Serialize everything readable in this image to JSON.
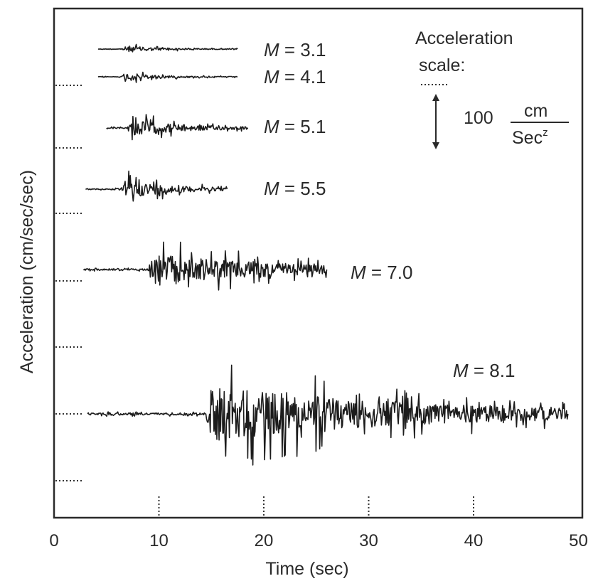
{
  "chart_data": {
    "type": "line",
    "xlabel": "Time (sec)",
    "ylabel": "Acceleration (cm/sec/sec)",
    "xlim": [
      0,
      50
    ],
    "x_ticks": [
      0,
      10,
      20,
      30,
      40,
      50
    ],
    "grid": false,
    "series": [
      {
        "name": "M = 3.1",
        "magnitude": "3.1",
        "magnitude_prefix": "M",
        "magnitude_rest": " = 3.1",
        "start": 4.2,
        "end": 17.5,
        "peak_time": 7.0,
        "peak_amplitude": 12,
        "baseline_noise": 1,
        "decay": 3,
        "offset": 0
      },
      {
        "name": "M = 4.1",
        "magnitude": "4.1",
        "magnitude_prefix": "M",
        "magnitude_rest": " = 4.1",
        "start": 4.2,
        "end": 17.5,
        "peak_time": 7.0,
        "peak_amplitude": 14,
        "baseline_noise": 1,
        "decay": 3,
        "offset": -1
      },
      {
        "name": "M = 5.1",
        "magnitude": "5.1",
        "magnitude_prefix": "M",
        "magnitude_rest": " = 5.1",
        "start": 5.0,
        "end": 18.5,
        "peak_time": 7.5,
        "peak_amplitude": 30,
        "baseline_noise": 2,
        "decay": 5,
        "offset": 1
      },
      {
        "name": "M = 5.5",
        "magnitude": "5.5",
        "magnitude_prefix": "M",
        "magnitude_rest": " = 5.5",
        "start": 3.0,
        "end": 16.5,
        "peak_time": 7.0,
        "peak_amplitude": 32,
        "baseline_noise": 2,
        "decay": 4.5,
        "offset": 0
      },
      {
        "name": "M = 7.0",
        "magnitude": "7.0",
        "magnitude_prefix": "M",
        "magnitude_rest": " = 7.0",
        "start": 2.8,
        "end": 26.0,
        "peak_time": 9.5,
        "peak_amplitude": 58,
        "baseline_noise": 3,
        "decay": 12,
        "offset": 0
      },
      {
        "name": "M = 8.1",
        "magnitude": "8.1",
        "magnitude_prefix": "M",
        "magnitude_rest": " = 8.1",
        "start": 3.2,
        "end": 49.0,
        "peak_time": 15.0,
        "peak_amplitude": 105,
        "baseline_noise": 4,
        "decay": 20,
        "offset": 0
      }
    ],
    "scale_bar": {
      "title_line1": "Acceleration",
      "title_line2": "scale:",
      "value": "100",
      "unit_numerator": "cm",
      "unit_denominator": "Sec",
      "unit_exponent": "z",
      "amount": 100
    }
  }
}
